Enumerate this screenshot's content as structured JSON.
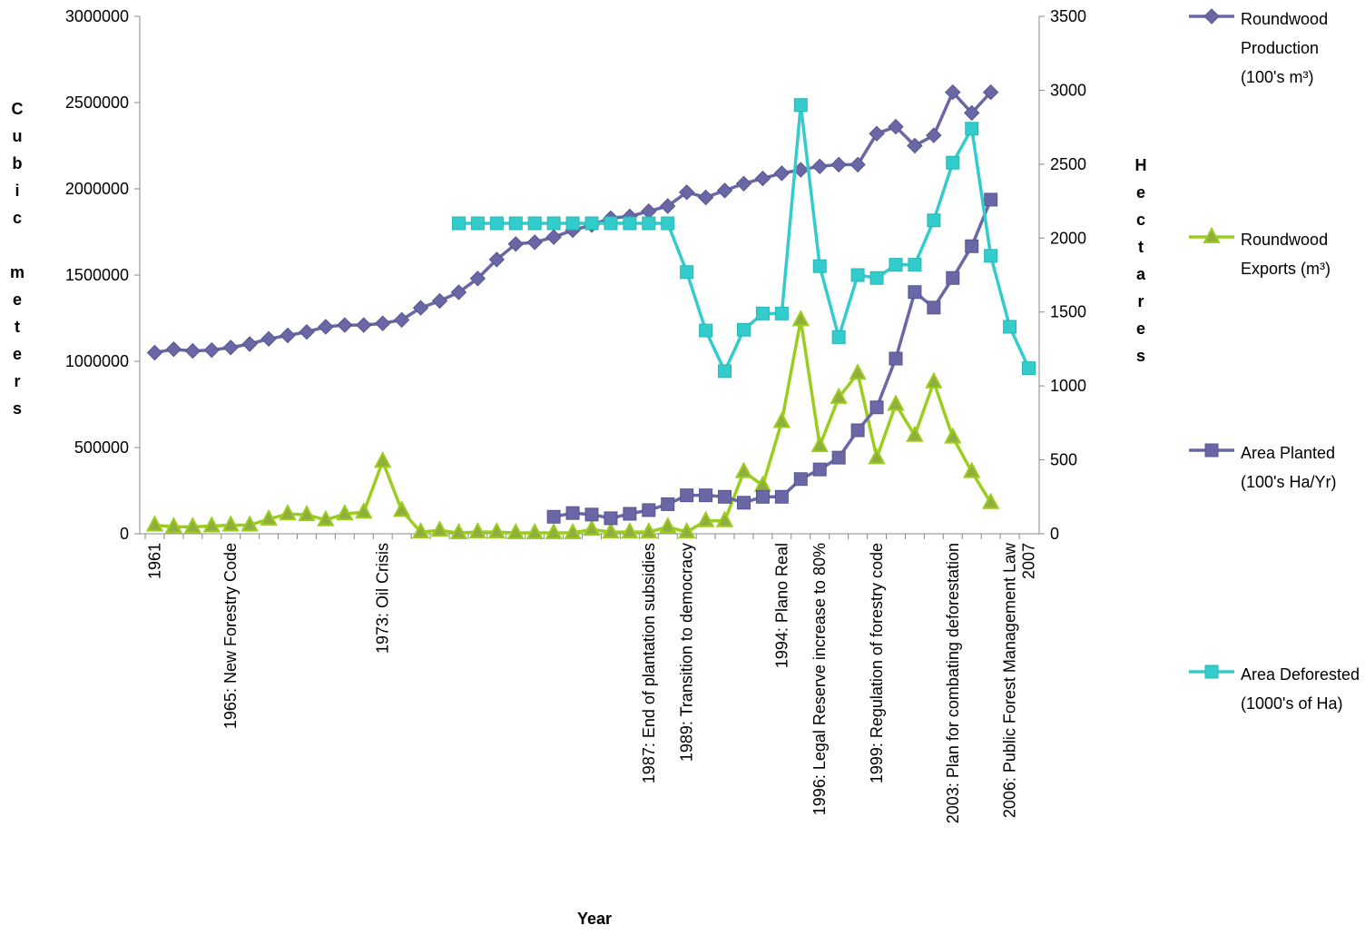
{
  "chart_data": {
    "type": "line",
    "x_label": "Year",
    "y_label": "Cubic meters",
    "y2_label": "Hectares",
    "categories": [
      "1961",
      null,
      null,
      null,
      "1965: New Forestry Code",
      null,
      null,
      null,
      null,
      null,
      null,
      null,
      "1973: Oil Crisis",
      null,
      null,
      null,
      null,
      null,
      null,
      null,
      null,
      null,
      null,
      null,
      null,
      null,
      "1987: End of plantation subsidies",
      null,
      "1989: Transition to democracy",
      null,
      null,
      null,
      null,
      "1994: Plano Real",
      null,
      "1996: Legal Reserve increase to 80%",
      null,
      null,
      "1999: Regulation of forestry code",
      null,
      null,
      null,
      "2003: Plan for combating deforestation",
      null,
      null,
      "2006: Public Forest Management Law",
      "2007"
    ],
    "ylim": [
      0,
      3000000
    ],
    "yticks": [
      0,
      500000,
      1000000,
      1500000,
      2000000,
      2500000,
      3000000
    ],
    "y2lim": [
      0,
      3500
    ],
    "y2ticks": [
      0,
      500,
      1000,
      1500,
      2000,
      2500,
      3000,
      3500
    ],
    "series": [
      {
        "name": "Roundwood Production (100's m³)",
        "color": "#6a67a6",
        "marker": "diamond",
        "values": [
          1050000,
          1070000,
          1060000,
          1065000,
          1080000,
          1100000,
          1130000,
          1150000,
          1170000,
          1200000,
          1210000,
          1210000,
          1220000,
          1240000,
          1310000,
          1350000,
          1400000,
          1480000,
          1590000,
          1680000,
          1690000,
          1720000,
          1760000,
          1790000,
          1830000,
          1840000,
          1870000,
          1900000,
          1980000,
          1950000,
          1990000,
          2030000,
          2060000,
          2090000,
          2110000,
          2130000,
          2140000,
          2140000,
          2320000,
          2360000,
          2250000,
          2310000,
          2560000,
          2440000,
          2560000,
          null,
          null
        ]
      },
      {
        "name": "Roundwood Exports (m³)",
        "color": "#9acd1e",
        "marker": "triangle",
        "values": [
          50000,
          40000,
          40000,
          45000,
          50000,
          50000,
          85000,
          115000,
          110000,
          80000,
          115000,
          125000,
          420000,
          135000,
          10000,
          20000,
          5000,
          10000,
          10000,
          5000,
          5000,
          5000,
          5000,
          25000,
          10000,
          10000,
          10000,
          40000,
          10000,
          75000,
          75000,
          360000,
          280000,
          650000,
          1240000,
          510000,
          790000,
          930000,
          440000,
          750000,
          570000,
          880000,
          560000,
          360000,
          180000,
          null,
          null
        ]
      },
      {
        "name": "Area Planted (100's Ha/Yr)",
        "color": "#6a67a6",
        "marker": "square",
        "axis": "y2",
        "values": [
          null,
          null,
          null,
          null,
          null,
          null,
          null,
          null,
          null,
          null,
          null,
          null,
          null,
          null,
          null,
          null,
          null,
          null,
          null,
          null,
          null,
          115,
          140,
          130,
          105,
          135,
          160,
          200,
          260,
          260,
          250,
          210,
          250,
          250,
          370,
          435,
          515,
          700,
          855,
          1185,
          1635,
          1530,
          1730,
          1945,
          2260,
          null,
          null
        ]
      },
      {
        "name": "Area Deforested (1000's of Ha)",
        "color": "#33cccc",
        "marker": "square",
        "axis": "y2",
        "values": [
          null,
          null,
          null,
          null,
          null,
          null,
          null,
          null,
          null,
          null,
          null,
          null,
          null,
          null,
          null,
          null,
          2100,
          2100,
          2100,
          2100,
          2100,
          2100,
          2100,
          2100,
          2100,
          2100,
          2100,
          2100,
          1770,
          1375,
          1100,
          1380,
          1490,
          1490,
          2900,
          1810,
          1330,
          1750,
          1730,
          1820,
          1820,
          2120,
          2510,
          2740,
          1880,
          1400,
          1120
        ]
      }
    ]
  }
}
